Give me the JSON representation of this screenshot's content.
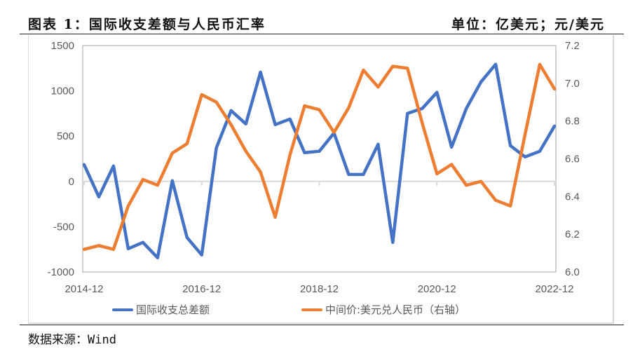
{
  "header": {
    "title": "图表 1：国际收支差额与人民币汇率",
    "unit": "单位：亿美元；元/美元"
  },
  "footer": {
    "source": "数据来源：Wind"
  },
  "colors": {
    "series_blue": "#4472C4",
    "series_orange": "#ED7D31",
    "axis_text": "#595959",
    "gridline": "#d9d9d9"
  },
  "chart_data": {
    "type": "line",
    "title": "国际收支差额与人民币汇率",
    "x": [
      "2014-12",
      "2015-03",
      "2015-06",
      "2015-09",
      "2015-12",
      "2016-03",
      "2016-06",
      "2016-09",
      "2016-12",
      "2017-03",
      "2017-06",
      "2017-09",
      "2017-12",
      "2018-03",
      "2018-06",
      "2018-09",
      "2018-12",
      "2019-03",
      "2019-06",
      "2019-09",
      "2019-12",
      "2020-03",
      "2020-06",
      "2020-09",
      "2020-12",
      "2021-03",
      "2021-06",
      "2021-09",
      "2021-12",
      "2022-03",
      "2022-06",
      "2022-09",
      "2022-12"
    ],
    "x_tick_labels": [
      "2014-12",
      "2016-12",
      "2018-12",
      "2020-12",
      "2022-12"
    ],
    "y_left": {
      "ylim": [
        -1000,
        1500
      ],
      "ticks": [
        "1500",
        "1000",
        "500",
        "0",
        "-500",
        "-1000"
      ],
      "tick_values": [
        1500,
        1000,
        500,
        0,
        -500,
        -1000
      ]
    },
    "y_right": {
      "ylim": [
        6.0,
        7.2
      ],
      "ticks": [
        "7.2",
        "7.0",
        "6.8",
        "6.6",
        "6.4",
        "6.2",
        "6.0"
      ],
      "tick_values": [
        7.2,
        7.0,
        6.8,
        6.6,
        6.4,
        6.2,
        6.0
      ]
    },
    "series": [
      {
        "name": "国际收支总差额",
        "axis": "left",
        "color": "#4472C4",
        "values": [
          186,
          -170,
          170,
          -743,
          -673,
          -843,
          8,
          -619,
          -812,
          372,
          782,
          635,
          1207,
          627,
          689,
          317,
          333,
          534,
          77,
          77,
          410,
          -673,
          751,
          805,
          983,
          379,
          805,
          1099,
          1293,
          395,
          271,
          333,
          611
        ]
      },
      {
        "name": "中间价:美元兑人民币（右轴）",
        "axis": "right",
        "color": "#ED7D31",
        "values": [
          6.12,
          6.14,
          6.12,
          6.35,
          6.49,
          6.46,
          6.63,
          6.68,
          6.94,
          6.9,
          6.78,
          6.64,
          6.53,
          6.29,
          6.62,
          6.88,
          6.86,
          6.74,
          6.87,
          7.07,
          6.98,
          7.09,
          7.08,
          6.79,
          6.52,
          6.57,
          6.46,
          6.48,
          6.38,
          6.35,
          6.73,
          7.1,
          6.97
        ]
      }
    ],
    "legend": {
      "position": "bottom",
      "entries": [
        "国际收支总差额",
        "中间价:美元兑人民币（右轴）"
      ]
    },
    "grid": false
  }
}
